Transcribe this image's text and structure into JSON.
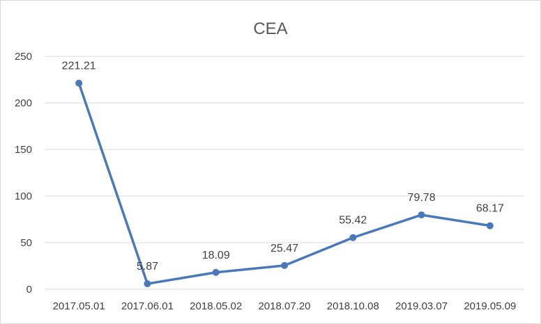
{
  "chart_data": {
    "type": "line",
    "title": "CEA",
    "xlabel": "",
    "ylabel": "",
    "categories": [
      "2017.05.01",
      "2017.06.01",
      "2018.05.02",
      "2018.07.20",
      "2018.10.08",
      "2019.03.07",
      "2019.05.09"
    ],
    "series": [
      {
        "values": [
          221.21,
          5.87,
          18.09,
          25.47,
          55.42,
          79.78,
          68.17
        ],
        "color": "#4a78b8"
      }
    ],
    "data_labels": [
      "221.21",
      "5.87",
      "18.09",
      "25.47",
      "55.42",
      "79.78",
      "68.17"
    ],
    "ylim": [
      0,
      250
    ],
    "yticks": [
      0,
      50,
      100,
      150,
      200,
      250
    ],
    "ytick_labels": [
      "0",
      "50",
      "100",
      "150",
      "200",
      "250"
    ],
    "grid": "horizontal",
    "legend": "none",
    "colors": {
      "series": "#4a78b8",
      "grid": "#d9d9d9",
      "text": "#404040",
      "title": "#595959"
    }
  }
}
